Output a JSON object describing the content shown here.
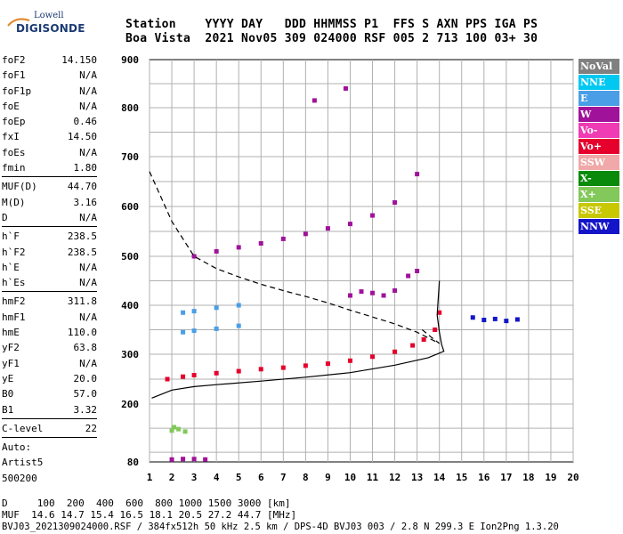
{
  "logo": {
    "top": "Lowell",
    "bottom": "DIGISONDE"
  },
  "header": {
    "line1": "Station    YYYY DAY   DDD HHMMSS P1  FFS S AXN PPS IGA PS",
    "line2": "Boa Vista  2021 Nov05 309 024000 RSF 005 2 713 100 03+ 30"
  },
  "params": [
    {
      "k": "foF2",
      "v": "14.150"
    },
    {
      "k": "foF1",
      "v": "N/A"
    },
    {
      "k": "foF1p",
      "v": "N/A"
    },
    {
      "k": "foE",
      "v": "N/A"
    },
    {
      "k": "foEp",
      "v": "0.46"
    },
    {
      "k": "fxI",
      "v": "14.50"
    },
    {
      "k": "foEs",
      "v": "N/A"
    },
    {
      "k": "fmin",
      "v": "1.80"
    },
    {
      "sep": true
    },
    {
      "k": "MUF(D)",
      "v": "44.70"
    },
    {
      "k": "M(D)",
      "v": "3.16"
    },
    {
      "k": "D",
      "v": "N/A"
    },
    {
      "sep": true
    },
    {
      "k": "h`F",
      "v": "238.5"
    },
    {
      "k": "h`F2",
      "v": "238.5"
    },
    {
      "k": "h`E",
      "v": "N/A"
    },
    {
      "k": "h`Es",
      "v": "N/A"
    },
    {
      "sep": true
    },
    {
      "k": "hmF2",
      "v": "311.8"
    },
    {
      "k": "hmF1",
      "v": "N/A"
    },
    {
      "k": "hmE",
      "v": "110.0"
    },
    {
      "k": "yF2",
      "v": "63.8"
    },
    {
      "k": "yF1",
      "v": "N/A"
    },
    {
      "k": "yE",
      "v": "20.0"
    },
    {
      "k": "B0",
      "v": "57.0"
    },
    {
      "k": "B1",
      "v": "3.32"
    },
    {
      "sep": true
    },
    {
      "k": "C-level",
      "v": "22"
    },
    {
      "sep": true
    },
    {
      "k": "Auto:",
      "v": ""
    },
    {
      "k": "Artist5",
      "v": ""
    },
    {
      "k": "500200",
      "v": ""
    }
  ],
  "legend": [
    {
      "label": "NoVal",
      "color": "#808080"
    },
    {
      "label": "NNE",
      "color": "#00c8f0"
    },
    {
      "label": "E",
      "color": "#4a9ee6"
    },
    {
      "label": "W",
      "color": "#a0129a"
    },
    {
      "label": "Vo-",
      "color": "#f03cb4"
    },
    {
      "label": "Vo+",
      "color": "#e6002c"
    },
    {
      "label": "SSW",
      "color": "#f0a8a8"
    },
    {
      "label": "X-",
      "color": "#0a8a0a"
    },
    {
      "label": "X+",
      "color": "#82c85a"
    },
    {
      "label": "SSE",
      "color": "#c8c800"
    },
    {
      "label": "NNW",
      "color": "#1414c8"
    }
  ],
  "footer": {
    "d_line": "D     100  200  400  600  800 1000 1500 3000 [km]",
    "muf_line": "MUF  14.6 14.7 15.4 16.5 18.1 20.5 27.2 44.7 [MHz]",
    "file_line": "BVJ03_2021309024000.RSF / 384fx512h 50 kHz 2.5 km / DPS-4D BVJ03 003 / 2.8 N 299.3 E Ion2Png 1.3.20"
  },
  "chart_data": {
    "type": "scatter",
    "title": "",
    "xlabel": "",
    "ylabel": "",
    "xlim": [
      1,
      20
    ],
    "ylim": [
      80,
      900
    ],
    "x_ticks": [
      "1",
      "2",
      "3",
      "4",
      "5",
      "6",
      "7",
      "8",
      "9",
      "10",
      "11",
      "12",
      "13",
      "14",
      "15",
      "16",
      "17",
      "18",
      "19",
      "20"
    ],
    "y_ticks": [
      "80",
      "200",
      "300",
      "400",
      "500",
      "600",
      "700",
      "800",
      "900"
    ],
    "grid": true,
    "series": [
      {
        "color": "#e6002c",
        "points": [
          [
            1.8,
            250
          ],
          [
            2.5,
            255
          ],
          [
            3,
            258
          ],
          [
            4,
            262
          ],
          [
            5,
            266
          ],
          [
            6,
            270
          ],
          [
            7,
            273
          ],
          [
            8,
            277
          ],
          [
            9,
            281
          ],
          [
            10,
            287
          ],
          [
            11,
            295
          ],
          [
            12,
            305
          ],
          [
            12.8,
            318
          ],
          [
            13.3,
            330
          ],
          [
            13.8,
            350
          ],
          [
            14.0,
            385
          ]
        ]
      },
      {
        "color": "#a0129a",
        "points": [
          [
            3,
            500
          ],
          [
            4,
            510
          ],
          [
            5,
            518
          ],
          [
            6,
            526
          ],
          [
            7,
            535
          ],
          [
            8,
            545
          ],
          [
            9,
            556
          ],
          [
            10,
            565
          ],
          [
            11,
            582
          ],
          [
            12,
            608
          ],
          [
            13,
            665
          ]
        ]
      },
      {
        "color": "#a0129a",
        "points": [
          [
            9.8,
            840
          ],
          [
            8.4,
            815
          ]
        ]
      },
      {
        "color": "#4a9ee6",
        "points": [
          [
            2.5,
            385
          ],
          [
            3,
            388
          ],
          [
            4,
            395
          ],
          [
            5,
            400
          ],
          [
            2.5,
            345
          ],
          [
            3,
            348
          ],
          [
            4,
            352
          ],
          [
            5,
            358
          ]
        ]
      },
      {
        "color": "#1414c8",
        "points": [
          [
            16.0,
            370
          ],
          [
            16.5,
            372
          ],
          [
            17,
            368
          ],
          [
            17.5,
            371
          ],
          [
            15.5,
            375
          ]
        ]
      },
      {
        "color": "#a0129a",
        "points": [
          [
            10,
            420
          ],
          [
            10.5,
            428
          ],
          [
            11,
            425
          ],
          [
            11.5,
            420
          ],
          [
            12,
            430
          ],
          [
            12.6,
            460
          ],
          [
            13,
            470
          ]
        ]
      },
      {
        "color": "#82c85a",
        "points": [
          [
            2,
            145
          ],
          [
            2.3,
            148
          ],
          [
            2.6,
            143
          ],
          [
            2.1,
            152
          ]
        ]
      },
      {
        "color": "#a0129a",
        "points": [
          [
            2,
            85
          ],
          [
            2.5,
            86
          ],
          [
            3,
            86
          ],
          [
            3.5,
            85
          ]
        ]
      }
    ],
    "curves": [
      {
        "style": "solid",
        "points": [
          [
            1.1,
            212
          ],
          [
            2,
            228
          ],
          [
            3,
            235
          ],
          [
            4,
            239
          ],
          [
            6,
            246
          ],
          [
            8,
            254
          ],
          [
            10,
            263
          ],
          [
            12,
            278
          ],
          [
            13.5,
            293
          ],
          [
            14.2,
            306
          ],
          [
            14.1,
            320
          ],
          [
            14.0,
            345
          ],
          [
            13.9,
            380
          ],
          [
            14.0,
            450
          ]
        ]
      },
      {
        "style": "dashed",
        "points": [
          [
            1.0,
            670
          ],
          [
            2.0,
            570
          ],
          [
            3.0,
            500
          ],
          [
            4,
            475
          ],
          [
            5,
            458
          ],
          [
            6,
            443
          ],
          [
            7,
            430
          ],
          [
            8,
            418
          ],
          [
            9,
            405
          ],
          [
            10,
            390
          ],
          [
            11,
            376
          ],
          [
            12,
            362
          ],
          [
            13,
            345
          ],
          [
            14,
            322
          ],
          [
            13.6,
            336
          ],
          [
            13.1,
            355
          ]
        ]
      }
    ]
  }
}
